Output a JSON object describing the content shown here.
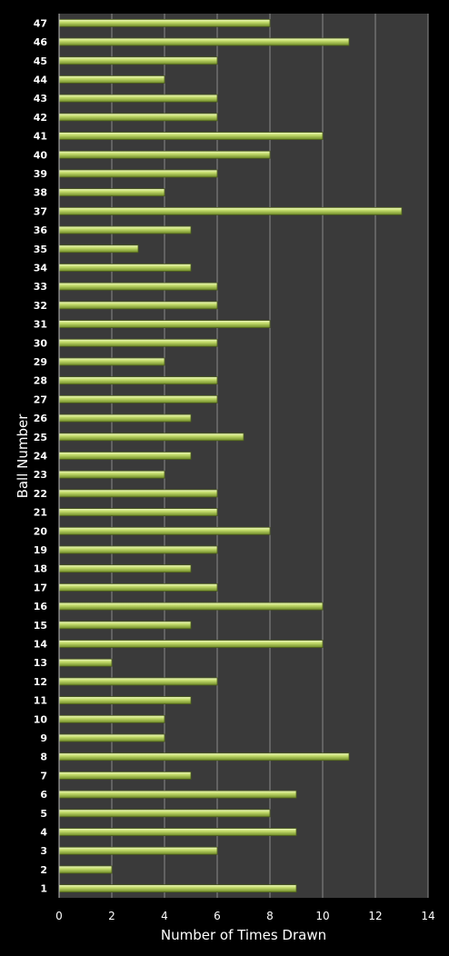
{
  "chart_data": {
    "type": "bar",
    "orientation": "horizontal",
    "xlabel": "Number of Times Drawn",
    "ylabel": "Ball Number",
    "xlim": [
      0,
      14
    ],
    "xticks": [
      0,
      2,
      4,
      6,
      8,
      10,
      12,
      14
    ],
    "grid": true,
    "legend": "none",
    "colors": {
      "background": "#000000",
      "plot_area": "#3a3a3a",
      "bar_fill": "#a9c84e",
      "bar_highlight": "#e6f4a8",
      "bar_edge": "#4d5e1c",
      "gridline": "#8a8a8a",
      "text": "#ffffff"
    },
    "categories": [
      "1",
      "2",
      "3",
      "4",
      "5",
      "6",
      "7",
      "8",
      "9",
      "10",
      "11",
      "12",
      "13",
      "14",
      "15",
      "16",
      "17",
      "18",
      "19",
      "20",
      "21",
      "22",
      "23",
      "24",
      "25",
      "26",
      "27",
      "28",
      "29",
      "30",
      "31",
      "32",
      "33",
      "34",
      "35",
      "36",
      "37",
      "38",
      "39",
      "40",
      "41",
      "42",
      "43",
      "44",
      "45",
      "46",
      "47"
    ],
    "values": [
      9,
      2,
      6,
      9,
      8,
      9,
      5,
      11,
      4,
      4,
      5,
      6,
      2,
      10,
      5,
      10,
      6,
      5,
      6,
      8,
      6,
      6,
      4,
      5,
      7,
      5,
      6,
      6,
      4,
      6,
      8,
      6,
      6,
      5,
      3,
      5,
      13,
      4,
      6,
      8,
      10,
      6,
      6,
      4,
      6,
      11,
      8
    ]
  }
}
